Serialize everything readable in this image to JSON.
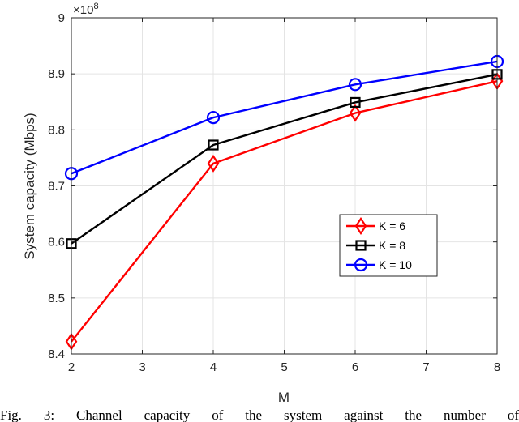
{
  "chart_data": {
    "type": "line",
    "xlabel": "M",
    "ylabel": "System capacity (Mbps)",
    "y_exponent_label": "×10",
    "y_exponent_power": "8",
    "x": [
      2,
      4,
      6,
      8
    ],
    "xlim": [
      2,
      8
    ],
    "ylim": [
      8.4,
      9.0
    ],
    "xticks": [
      2,
      3,
      4,
      5,
      6,
      7,
      8
    ],
    "yticks": [
      8.4,
      8.5,
      8.6,
      8.7,
      8.8,
      8.9,
      9.0
    ],
    "ytick_labels": [
      "8.4",
      "8.5",
      "8.6",
      "8.7",
      "8.8",
      "8.9",
      "9"
    ],
    "grid": true,
    "legend_position": "center-right",
    "series": [
      {
        "name": "K = 6",
        "values": [
          8.422,
          8.74,
          8.83,
          8.887
        ],
        "color": "#ff0000",
        "marker": "diamond"
      },
      {
        "name": "K = 8",
        "values": [
          8.597,
          8.773,
          8.849,
          8.899
        ],
        "color": "#000000",
        "marker": "square"
      },
      {
        "name": "K = 10",
        "values": [
          8.722,
          8.822,
          8.881,
          8.922
        ],
        "color": "#0000ff",
        "marker": "circle"
      }
    ]
  },
  "caption": "Fig. 3: Channel capacity of the system against the number of"
}
